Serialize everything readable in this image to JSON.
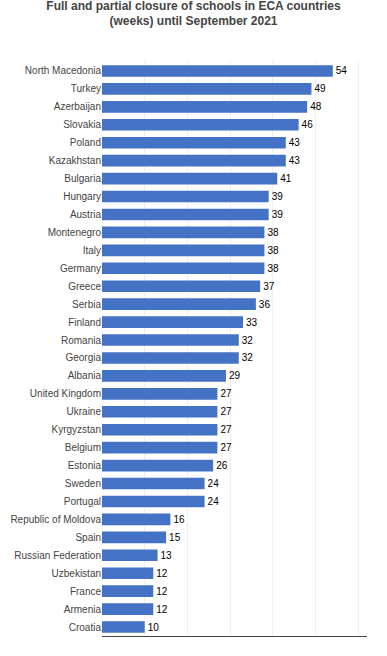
{
  "chart_data": {
    "type": "bar",
    "orientation": "horizontal",
    "title": "Full and partial closure of schools in ECA countries\n(weeks) until September 2021",
    "categories": [
      "North Macedonia",
      "Turkey",
      "Azerbaijan",
      "Slovakia",
      "Poland",
      "Kazakhstan",
      "Bulgaria",
      "Hungary",
      "Austria",
      "Montenegro",
      "Italy",
      "Germany",
      "Greece",
      "Serbia",
      "Finland",
      "Romania",
      "Georgia",
      "Albania",
      "United Kingdom",
      "Ukraine",
      "Kyrgyzstan",
      "Belgium",
      "Estonia",
      "Sweden",
      "Portugal",
      "Republic of Moldova",
      "Spain",
      "Russian Federation",
      "Uzbekistan",
      "France",
      "Armenia",
      "Croatia"
    ],
    "values": [
      54,
      49,
      48,
      46,
      43,
      43,
      41,
      39,
      39,
      38,
      38,
      38,
      37,
      36,
      33,
      32,
      32,
      29,
      27,
      27,
      27,
      27,
      26,
      24,
      24,
      16,
      15,
      13,
      12,
      12,
      12,
      10
    ],
    "color": "#4472C4",
    "xlim": [
      0,
      62
    ],
    "xticks": [
      0,
      10,
      20,
      30,
      40,
      50,
      60
    ],
    "grid": true,
    "data_labels": true,
    "tick_labels": "y"
  }
}
